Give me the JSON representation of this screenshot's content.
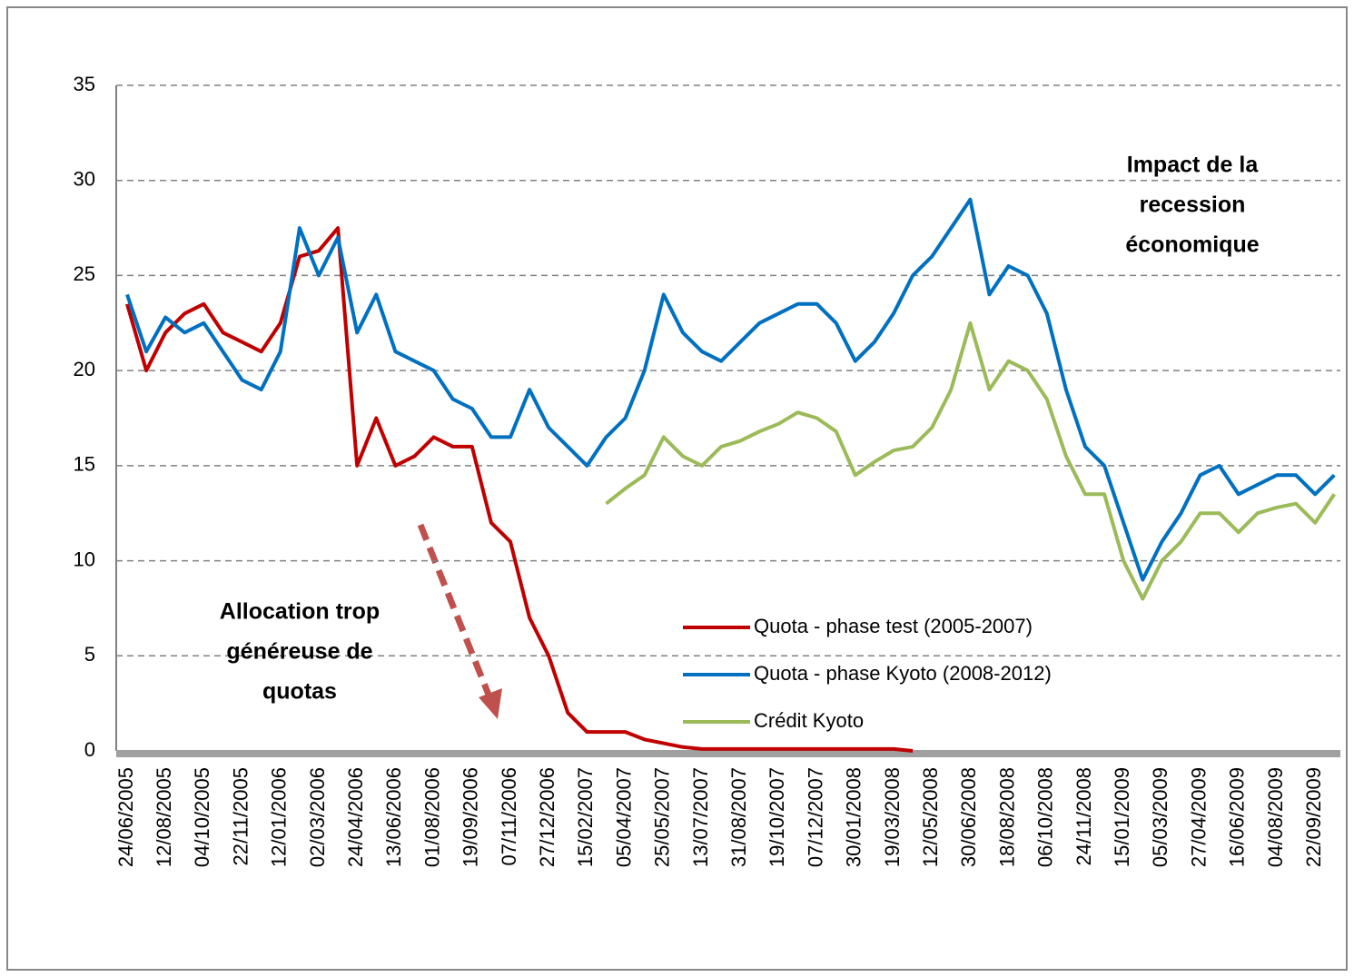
{
  "chart_data": {
    "type": "line",
    "categories": [
      "24/06/2005",
      null,
      "12/08/2005",
      null,
      "04/10/2005",
      null,
      "22/11/2005",
      null,
      "12/01/2006",
      null,
      "02/03/2006",
      null,
      "24/04/2006",
      null,
      "13/06/2006",
      null,
      "01/08/2006",
      null,
      "19/09/2006",
      null,
      "07/11/2006",
      null,
      "27/12/2006",
      null,
      "15/02/2007",
      null,
      "05/04/2007",
      null,
      "25/05/2007",
      null,
      "13/07/2007",
      null,
      "31/08/2007",
      null,
      "19/10/2007",
      null,
      "07/12/2007",
      null,
      "30/01/2008",
      null,
      "19/03/2008",
      null,
      "12/05/2008",
      null,
      "30/06/2008",
      null,
      "18/08/2008",
      null,
      "06/10/2008",
      null,
      "24/11/2008",
      null,
      "15/01/2009",
      null,
      "05/03/2009",
      null,
      "27/04/2009",
      null,
      "16/06/2009",
      null,
      "04/08/2009",
      null,
      "22/09/2009",
      null
    ],
    "series": [
      {
        "name": "Quota - phase test (2005-2007)",
        "color": "#c00000",
        "values": [
          23.5,
          20,
          22,
          23,
          23.5,
          22,
          21.5,
          21,
          22.5,
          26,
          26.3,
          27.5,
          15,
          17.5,
          15,
          15.5,
          16.5,
          16,
          16,
          12,
          11,
          7,
          5,
          2,
          1,
          1,
          1,
          0.6,
          0.4,
          0.2,
          0.1,
          0.1,
          0.1,
          0.1,
          0.1,
          0.1,
          0.1,
          0.1,
          0.1,
          0.1,
          0.1,
          0,
          null,
          null,
          null,
          null,
          null,
          null,
          null,
          null,
          null,
          null,
          null,
          null,
          null,
          null,
          null,
          null,
          null,
          null,
          null,
          null,
          null,
          null
        ]
      },
      {
        "name": "Quota - phase Kyoto (2008-2012)",
        "color": "#0070c0",
        "values": [
          24,
          21,
          22.8,
          22,
          22.5,
          21,
          19.5,
          19,
          21,
          27.5,
          25,
          27,
          22,
          24,
          21,
          20.5,
          20,
          18.5,
          18,
          16.5,
          16.5,
          19,
          17,
          16,
          15,
          16.5,
          17.5,
          20,
          24,
          22,
          21,
          20.5,
          21.5,
          22.5,
          23,
          23.5,
          23.5,
          22.5,
          20.5,
          21.5,
          23,
          25,
          26,
          27.5,
          29,
          24,
          25.5,
          25,
          23,
          19,
          16,
          15,
          12,
          9,
          11,
          12.5,
          14.5,
          15,
          13.5,
          14,
          14.5,
          14.5,
          13.5,
          14.5
        ]
      },
      {
        "name": "Crédit Kyoto",
        "color": "#9bbb59",
        "values": [
          null,
          null,
          null,
          null,
          null,
          null,
          null,
          null,
          null,
          null,
          null,
          null,
          null,
          null,
          null,
          null,
          null,
          null,
          null,
          null,
          null,
          null,
          null,
          null,
          null,
          13,
          13.8,
          14.5,
          16.5,
          15.5,
          15,
          16,
          16.3,
          16.8,
          17.2,
          17.8,
          17.5,
          16.8,
          14.5,
          15.2,
          15.8,
          16,
          17,
          19,
          22.5,
          19,
          20.5,
          20,
          18.5,
          15.5,
          13.5,
          13.5,
          10,
          8,
          10,
          11,
          12.5,
          12.5,
          11.5,
          12.5,
          12.8,
          13,
          12,
          13.5
        ]
      }
    ],
    "ylim": [
      0,
      35
    ],
    "yticks": [
      0,
      5,
      10,
      15,
      20,
      25,
      30,
      35
    ],
    "grid": true,
    "annotations": [
      [
        "Impact de la",
        "recession",
        "économique"
      ],
      [
        "Allocation trop",
        "généreuse de",
        "quotas"
      ]
    ]
  }
}
